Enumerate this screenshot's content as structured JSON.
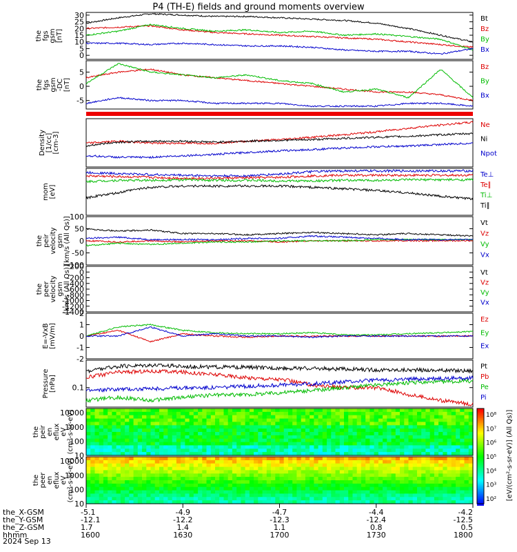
{
  "title": "P4 (TH-E) fields and ground moments overview",
  "date_label": "2024 Sep 13",
  "colorbar_label": "[eV/(cm²-s-sr-eV)] (All Qs)]",
  "colorbar_ticks": [
    "10⁸",
    "10⁷",
    "10⁶",
    "10⁵",
    "10⁴",
    "10³",
    "10²"
  ],
  "chart_data": [
    {
      "panel": "fgs_gsm",
      "type": "line",
      "ylabel": [
        "the",
        "fgs",
        "gsm",
        "[nT]"
      ],
      "ylim": [
        -3,
        32
      ],
      "yticks": [
        0,
        5,
        10,
        15,
        20,
        25,
        30
      ],
      "series": [
        {
          "name": "Bt",
          "color": "#000000",
          "x": [
            0,
            5,
            10,
            15,
            20,
            25,
            30,
            35,
            40,
            45,
            50,
            55,
            60
          ],
          "values": [
            24,
            28,
            31,
            30,
            29,
            29,
            28,
            27,
            26,
            24,
            20,
            15,
            10
          ]
        },
        {
          "name": "Bz",
          "color": "#dd0000",
          "x": [
            0,
            5,
            10,
            15,
            20,
            25,
            30,
            35,
            40,
            45,
            50,
            55,
            60
          ],
          "values": [
            20,
            21,
            22,
            19,
            17,
            16,
            15,
            14,
            13,
            12,
            10,
            8,
            6
          ]
        },
        {
          "name": "By",
          "color": "#00bb00",
          "x": [
            0,
            5,
            10,
            15,
            20,
            25,
            30,
            35,
            40,
            45,
            50,
            55,
            60
          ],
          "values": [
            15,
            18,
            23,
            20,
            18,
            19,
            17,
            18,
            15,
            16,
            14,
            12,
            4
          ]
        },
        {
          "name": "Bx",
          "color": "#0000cc",
          "x": [
            0,
            5,
            10,
            15,
            20,
            25,
            30,
            35,
            40,
            45,
            50,
            55,
            60
          ],
          "values": [
            9,
            9,
            8,
            9,
            8,
            7,
            7,
            6,
            4,
            3,
            3,
            1,
            5
          ]
        }
      ]
    },
    {
      "panel": "fgs_gsm_dc",
      "type": "line",
      "ylabel": [
        "the",
        "fgs",
        "gsm",
        "-DC",
        "[nT]"
      ],
      "ylim": [
        -8,
        9
      ],
      "yticks": [
        -5,
        0,
        5
      ],
      "series": [
        {
          "name": "Bz",
          "color": "#dd0000",
          "x": [
            0,
            5,
            10,
            15,
            20,
            25,
            30,
            35,
            40,
            45,
            50,
            55,
            60
          ],
          "values": [
            3,
            5,
            6,
            4,
            3,
            2,
            1,
            0,
            -1,
            -2,
            -2,
            -3,
            -5
          ]
        },
        {
          "name": "By",
          "color": "#00bb00",
          "x": [
            0,
            5,
            10,
            15,
            20,
            25,
            30,
            35,
            40,
            45,
            50,
            55,
            60
          ],
          "values": [
            1,
            8,
            5,
            4,
            3,
            4,
            2,
            1,
            -2,
            -1,
            -4,
            6,
            -4
          ]
        },
        {
          "name": "Bx",
          "color": "#0000cc",
          "x": [
            0,
            5,
            10,
            15,
            20,
            25,
            30,
            35,
            40,
            45,
            50,
            55,
            60
          ],
          "values": [
            -6,
            -4,
            -5,
            -5,
            -6,
            -6,
            -6,
            -7,
            -7,
            -7,
            -6,
            -6,
            -7
          ]
        }
      ]
    },
    {
      "panel": "density",
      "type": "line",
      "ylabel": [
        "Density",
        "[1/cc]",
        "[cm-3]"
      ],
      "log": true,
      "ylim": [
        0.01,
        10
      ],
      "series": [
        {
          "name": "Ne",
          "color": "#dd0000",
          "x": [
            0,
            5,
            10,
            15,
            20,
            25,
            30,
            35,
            40,
            45,
            50,
            55,
            60
          ],
          "values": [
            0.3,
            0.4,
            0.3,
            0.3,
            0.3,
            0.4,
            0.5,
            0.7,
            1,
            1.5,
            2.5,
            4,
            6
          ]
        },
        {
          "name": "Ni",
          "color": "#000000",
          "x": [
            0,
            5,
            10,
            15,
            20,
            25,
            30,
            35,
            40,
            45,
            50,
            55,
            60
          ],
          "values": [
            0.2,
            0.35,
            0.4,
            0.4,
            0.35,
            0.4,
            0.45,
            0.5,
            0.6,
            0.7,
            0.8,
            1,
            1.2
          ]
        },
        {
          "name": "Npot",
          "color": "#0000cc",
          "x": [
            0,
            5,
            10,
            15,
            20,
            25,
            30,
            35,
            40,
            45,
            50,
            55,
            60
          ],
          "values": [
            0.05,
            0.04,
            0.04,
            0.05,
            0.06,
            0.08,
            0.1,
            0.12,
            0.15,
            0.18,
            0.2,
            0.25,
            0.3
          ]
        }
      ]
    },
    {
      "panel": "temperature",
      "type": "line",
      "ylabel": [
        "mom",
        "[eV]"
      ],
      "log": true,
      "ylim": [
        100,
        30000
      ],
      "series": [
        {
          "name": "Te⊥",
          "color": "#0000cc",
          "x": [
            0,
            5,
            10,
            15,
            20,
            25,
            30,
            35,
            40,
            45,
            50,
            55,
            60
          ],
          "values": [
            18000,
            16000,
            14000,
            13000,
            12000,
            12000,
            15000,
            20000,
            22000,
            22000,
            22000,
            22000,
            22000
          ]
        },
        {
          "name": "Te∥",
          "color": "#dd0000",
          "x": [
            0,
            5,
            10,
            15,
            20,
            25,
            30,
            35,
            40,
            45,
            50,
            55,
            60
          ],
          "values": [
            12000,
            11000,
            10000,
            9000,
            9000,
            9500,
            10000,
            12000,
            13000,
            13000,
            13000,
            13000,
            13000
          ]
        },
        {
          "name": "Ti⊥",
          "color": "#00bb00",
          "x": [
            0,
            5,
            10,
            15,
            20,
            25,
            30,
            35,
            40,
            45,
            50,
            55,
            60
          ],
          "values": [
            6000,
            7000,
            7000,
            7500,
            7000,
            7000,
            6500,
            6500,
            7000,
            7000,
            7500,
            7500,
            7500
          ]
        },
        {
          "name": "Ti∥",
          "color": "#000000",
          "x": [
            0,
            5,
            10,
            15,
            20,
            25,
            30,
            35,
            40,
            45,
            50,
            55,
            60
          ],
          "values": [
            800,
            1500,
            3000,
            3500,
            3500,
            3500,
            3500,
            3000,
            2500,
            2000,
            1500,
            1000,
            700
          ]
        }
      ]
    },
    {
      "panel": "peir_velocity",
      "type": "line",
      "ylabel": [
        "the",
        "peir",
        "velocity",
        "gsm",
        "[km/s (All Qs)]"
      ],
      "ylim": [
        -100,
        100
      ],
      "yticks": [
        -100,
        -50,
        0,
        50,
        100
      ],
      "series": [
        {
          "name": "Vt",
          "color": "#000000",
          "x": [
            0,
            5,
            10,
            15,
            20,
            25,
            30,
            35,
            40,
            45,
            50,
            55,
            60
          ],
          "values": [
            50,
            40,
            45,
            30,
            30,
            25,
            30,
            35,
            30,
            25,
            30,
            25,
            20
          ]
        },
        {
          "name": "Vz",
          "color": "#dd0000",
          "x": [
            0,
            5,
            10,
            15,
            20,
            25,
            30,
            35,
            40,
            45,
            50,
            55,
            60
          ],
          "values": [
            0,
            -5,
            0,
            -5,
            0,
            0,
            -5,
            0,
            0,
            0,
            0,
            0,
            0
          ]
        },
        {
          "name": "Vy",
          "color": "#00bb00",
          "x": [
            0,
            5,
            10,
            15,
            20,
            25,
            30,
            35,
            40,
            45,
            50,
            55,
            60
          ],
          "values": [
            -20,
            -10,
            -15,
            -10,
            -5,
            -5,
            0,
            0,
            0,
            5,
            5,
            5,
            5
          ]
        },
        {
          "name": "Vx",
          "color": "#0000cc",
          "x": [
            0,
            5,
            10,
            15,
            20,
            25,
            30,
            35,
            40,
            45,
            50,
            55,
            60
          ],
          "values": [
            10,
            15,
            5,
            5,
            5,
            10,
            10,
            20,
            15,
            10,
            5,
            5,
            5
          ]
        }
      ]
    },
    {
      "panel": "peer_velocity",
      "type": "line",
      "ylabel": [
        "the",
        "peer",
        "velocity",
        "gsm",
        "[km/s (All Qs)]"
      ],
      "ylim": [
        -1400,
        200
      ],
      "yticks": [
        -1400,
        -1200,
        -1000,
        -800,
        -600,
        -400,
        -200,
        0,
        200
      ],
      "series": [
        {
          "name": "Vt",
          "color": "#000000",
          "x": [],
          "values": []
        },
        {
          "name": "Vz",
          "color": "#dd0000",
          "x": [],
          "values": []
        },
        {
          "name": "Vy",
          "color": "#00bb00",
          "x": [],
          "values": []
        },
        {
          "name": "Vx",
          "color": "#0000cc",
          "x": [],
          "values": []
        }
      ]
    },
    {
      "panel": "efield",
      "type": "line",
      "ylabel": [
        "E=-VxB",
        "[mV/m]"
      ],
      "ylim": [
        -2,
        2
      ],
      "yticks": [
        -2,
        -1,
        0,
        1,
        2
      ],
      "series": [
        {
          "name": "Ez",
          "color": "#dd0000",
          "x": [
            0,
            5,
            10,
            15,
            20,
            25,
            30,
            35,
            40,
            45,
            50,
            55,
            60
          ],
          "values": [
            0,
            0.5,
            -0.5,
            0.2,
            0,
            -0.1,
            0,
            0,
            0,
            0,
            0,
            0,
            0
          ]
        },
        {
          "name": "Ey",
          "color": "#00bb00",
          "x": [
            0,
            5,
            10,
            15,
            20,
            25,
            30,
            35,
            40,
            45,
            50,
            55,
            60
          ],
          "values": [
            0,
            0.8,
            1,
            0.5,
            0.3,
            0.2,
            0.2,
            0.3,
            0.1,
            0.1,
            0.2,
            0.3,
            0.4
          ]
        },
        {
          "name": "Ex",
          "color": "#0000cc",
          "x": [
            0,
            5,
            10,
            15,
            20,
            25,
            30,
            35,
            40,
            45,
            50,
            55,
            60
          ],
          "values": [
            0,
            0,
            0.8,
            0,
            0.2,
            0,
            0,
            -0.1,
            0,
            0,
            0,
            0,
            0
          ]
        }
      ]
    },
    {
      "panel": "pressure",
      "type": "line",
      "ylabel": [
        "Pressure",
        "[nPa]"
      ],
      "log": true,
      "ylim": [
        0.025,
        0.7
      ],
      "yticks": [
        0.1
      ],
      "series": [
        {
          "name": "Pt",
          "color": "#000000",
          "x": [
            0,
            5,
            10,
            15,
            20,
            25,
            30,
            35,
            40,
            45,
            50,
            55,
            60
          ],
          "values": [
            0.32,
            0.45,
            0.5,
            0.45,
            0.43,
            0.42,
            0.4,
            0.39,
            0.37,
            0.35,
            0.35,
            0.34,
            0.33
          ]
        },
        {
          "name": "Pb",
          "color": "#dd0000",
          "x": [
            0,
            5,
            10,
            15,
            20,
            25,
            30,
            35,
            40,
            45,
            50,
            55,
            60
          ],
          "values": [
            0.2,
            0.3,
            0.32,
            0.3,
            0.25,
            0.2,
            0.18,
            0.12,
            0.1,
            0.1,
            0.06,
            0.04,
            0.03
          ]
        },
        {
          "name": "Pe",
          "color": "#00bb00",
          "x": [
            0,
            5,
            10,
            15,
            20,
            25,
            30,
            35,
            40,
            45,
            50,
            55,
            60
          ],
          "values": [
            0.04,
            0.05,
            0.04,
            0.05,
            0.06,
            0.06,
            0.07,
            0.08,
            0.1,
            0.12,
            0.14,
            0.15,
            0.16
          ]
        },
        {
          "name": "Pi",
          "color": "#0000cc",
          "x": [
            0,
            5,
            10,
            15,
            20,
            25,
            30,
            35,
            40,
            45,
            50,
            55,
            60
          ],
          "values": [
            0.08,
            0.09,
            0.09,
            0.1,
            0.1,
            0.11,
            0.12,
            0.13,
            0.15,
            0.17,
            0.18,
            0.19,
            0.2
          ]
        }
      ]
    },
    {
      "panel": "peir_en_eflux",
      "type": "heatmap",
      "ylabel": [
        "the",
        "peir",
        "en",
        "eflux",
        "eV",
        "(cm²-s-sr-eV)"
      ],
      "log": true,
      "ylim": [
        10,
        20000
      ],
      "yticks": [
        10,
        100,
        1000,
        10000
      ],
      "note": "ion energy flux spectrogram mostly green/cyan with yellow patches"
    },
    {
      "panel": "peer_en_eflux",
      "type": "heatmap",
      "ylabel": [
        "the",
        "peer",
        "en",
        "eflux",
        "eV",
        "(cm²-s-sr-eV)"
      ],
      "log": true,
      "ylim": [
        10,
        20000
      ],
      "yticks": [
        10,
        100,
        1000,
        10000
      ],
      "note": "electron energy flux spectrogram red/orange at high energies, green/blue at low energies"
    }
  ],
  "xaxis": {
    "rows": [
      {
        "label": "the_X-GSM",
        "values": [
          "-5.1",
          "-4.9",
          "-4.7",
          "-4.4",
          "-4.2"
        ]
      },
      {
        "label": "the_Y-GSM",
        "values": [
          "-12.1",
          "-12.2",
          "-12.3",
          "-12.4",
          "-12.5"
        ]
      },
      {
        "label": "the_Z-GSM",
        "values": [
          "1.7",
          "1.4",
          "1.1",
          "0.8",
          "0.5"
        ]
      },
      {
        "label": "hhmm",
        "values": [
          "1600",
          "1630",
          "1700",
          "1730",
          "1800"
        ]
      }
    ]
  }
}
